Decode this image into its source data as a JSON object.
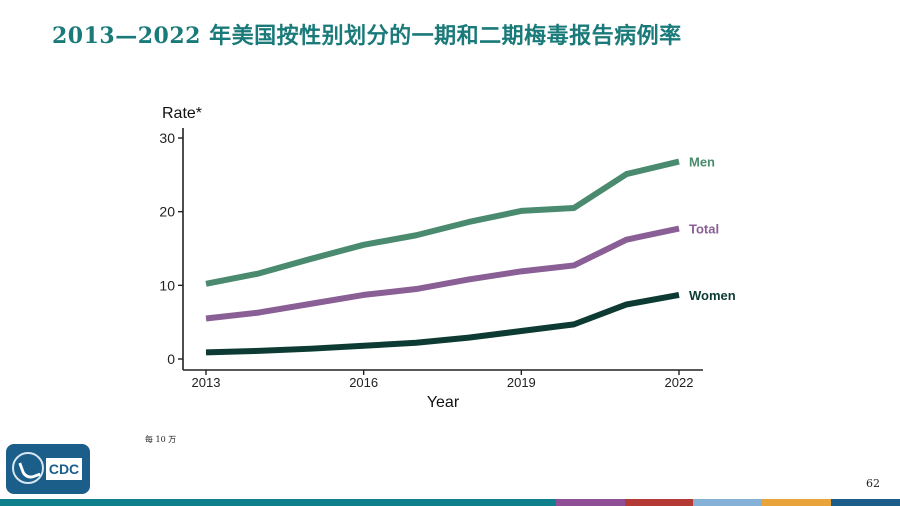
{
  "slide": {
    "title": "2013—2022 年美国按性别划分的一期和二期梅毒报告病例率",
    "footnote": "每 10 万",
    "page_number": "62",
    "logo_text": "CDC",
    "bottom_bar_colors": [
      "#0f7f8c",
      "#8e4f97",
      "#b43b35",
      "#86b1d6",
      "#e8a33a",
      "#1b5e8a"
    ]
  },
  "chart_data": {
    "type": "line",
    "ylabel": "Rate*",
    "xlabel": "Year",
    "x": [
      2013,
      2014,
      2015,
      2016,
      2017,
      2018,
      2019,
      2020,
      2021,
      2022
    ],
    "xticks": [
      2013,
      2016,
      2019,
      2022
    ],
    "yticks": [
      0,
      10,
      20,
      30
    ],
    "xlim": [
      2013,
      2022
    ],
    "ylim": [
      0,
      30
    ],
    "grid": false,
    "series": [
      {
        "name": "Men",
        "color": "#4a8a6e",
        "values": [
          10.2,
          11.6,
          13.6,
          15.5,
          16.8,
          18.6,
          20.1,
          20.5,
          25.1,
          26.8
        ]
      },
      {
        "name": "Total",
        "color": "#8a5f96",
        "values": [
          5.5,
          6.3,
          7.5,
          8.7,
          9.5,
          10.8,
          11.9,
          12.7,
          16.2,
          17.7
        ]
      },
      {
        "name": "Women",
        "color": "#0d3b33",
        "values": [
          0.9,
          1.1,
          1.4,
          1.8,
          2.2,
          2.9,
          3.8,
          4.7,
          7.4,
          8.7
        ]
      }
    ]
  }
}
